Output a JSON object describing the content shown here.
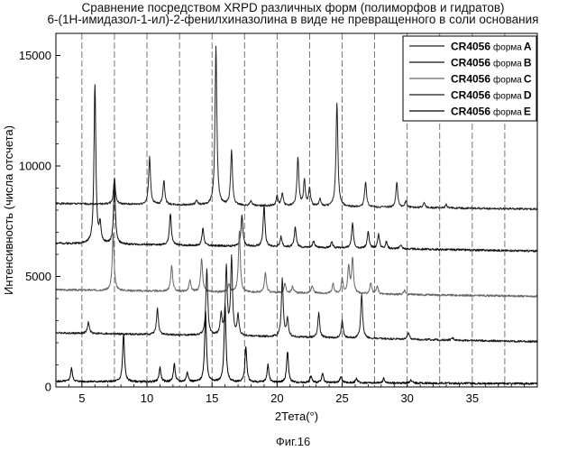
{
  "page": {
    "title_line1": "Сравнение посредством XRPD различных форм (полиморфов и гидратов)",
    "title_line2": "6-(1Н-имидазол-1-ил)-2-фенилхиназолина в виде не превращенного в соли основания",
    "figure_label": "Фиг.16"
  },
  "chart_data": {
    "type": "line",
    "xlabel": "2Тета(°)",
    "ylabel": "Интенсивность (числа отсчета)",
    "xlim": [
      3,
      40
    ],
    "ylim": [
      0,
      16000
    ],
    "xticks": [
      "5",
      "10",
      "15",
      "20",
      "25",
      "30",
      "35"
    ],
    "xtick_values": [
      5,
      10,
      15,
      20,
      25,
      30,
      35
    ],
    "yticks": [
      "0",
      "5000",
      "10000",
      "15000"
    ],
    "ytick_values": [
      0,
      5000,
      10000,
      15000
    ],
    "dashed_reference_lines_2theta": [
      5,
      7.5,
      10,
      12.5,
      15,
      17.5,
      20,
      22.5,
      25,
      27.5,
      30,
      32.5,
      35,
      37.5
    ],
    "legend_position": "top-right",
    "legend_word": "форма",
    "series": [
      {
        "name": "CR4056",
        "form": "A",
        "color": "#222222",
        "baseline_start": 8300,
        "baseline_end": 8050,
        "peaks": [
          [
            7.5,
            1200
          ],
          [
            10.2,
            2150
          ],
          [
            11.3,
            1100
          ],
          [
            13.8,
            200
          ],
          [
            15.3,
            7150
          ],
          [
            16.5,
            2450
          ],
          [
            18.0,
            200
          ],
          [
            20.0,
            450
          ],
          [
            20.4,
            550
          ],
          [
            21.6,
            2200
          ],
          [
            22.1,
            1150
          ],
          [
            22.5,
            800
          ],
          [
            23.3,
            350
          ],
          [
            24.6,
            4700
          ],
          [
            26.8,
            1150
          ],
          [
            29.2,
            1150
          ],
          [
            29.9,
            300
          ],
          [
            31.3,
            250
          ],
          [
            33.0,
            150
          ]
        ]
      },
      {
        "name": "CR4056",
        "form": "B",
        "color": "#111111",
        "baseline_start": 6500,
        "baseline_end": 6150,
        "peaks": [
          [
            6.0,
            7200
          ],
          [
            6.4,
            800
          ],
          [
            7.5,
            2700
          ],
          [
            11.8,
            1450
          ],
          [
            14.3,
            800
          ],
          [
            17.3,
            1400
          ],
          [
            19.0,
            1850
          ],
          [
            20.3,
            450
          ],
          [
            21.4,
            900
          ],
          [
            22.8,
            300
          ],
          [
            24.2,
            250
          ],
          [
            25.8,
            1100
          ],
          [
            27.0,
            750
          ],
          [
            27.8,
            650
          ],
          [
            28.4,
            300
          ],
          [
            29.5,
            200
          ]
        ]
      },
      {
        "name": "CR4056",
        "form": "C",
        "color": "#666666",
        "baseline_start": 4400,
        "baseline_end": 4100,
        "peaks": [
          [
            7.4,
            2550
          ],
          [
            11.9,
            1200
          ],
          [
            13.3,
            500
          ],
          [
            14.2,
            1500
          ],
          [
            16.3,
            350
          ],
          [
            17.1,
            2800
          ],
          [
            19.1,
            900
          ],
          [
            20.6,
            400
          ],
          [
            21.2,
            300
          ],
          [
            22.7,
            350
          ],
          [
            24.3,
            450
          ],
          [
            25.0,
            650
          ],
          [
            25.5,
            1200
          ],
          [
            25.8,
            1600
          ],
          [
            27.2,
            500
          ],
          [
            27.7,
            350
          ],
          [
            29.8,
            200
          ]
        ]
      },
      {
        "name": "CR4056",
        "form": "D",
        "color": "#1a1a1a",
        "baseline_start": 2450,
        "baseline_end": 2050,
        "peaks": [
          [
            5.5,
            500
          ],
          [
            10.8,
            1200
          ],
          [
            14.6,
            3000
          ],
          [
            15.7,
            900
          ],
          [
            16.1,
            3000
          ],
          [
            16.5,
            3500
          ],
          [
            17.0,
            900
          ],
          [
            20.4,
            2600
          ],
          [
            20.8,
            800
          ],
          [
            23.2,
            1100
          ],
          [
            25.0,
            800
          ],
          [
            26.5,
            2000
          ],
          [
            30.1,
            300
          ],
          [
            33.5,
            100
          ]
        ]
      },
      {
        "name": "CR4056",
        "form": "E",
        "color": "#000000",
        "baseline_start": 250,
        "baseline_end": 150,
        "peaks": [
          [
            4.2,
            600
          ],
          [
            8.2,
            2150
          ],
          [
            11.0,
            650
          ],
          [
            12.1,
            800
          ],
          [
            13.1,
            450
          ],
          [
            14.5,
            3200
          ],
          [
            16.0,
            3550
          ],
          [
            17.6,
            1600
          ],
          [
            19.3,
            800
          ],
          [
            20.8,
            1400
          ],
          [
            22.6,
            300
          ],
          [
            23.5,
            400
          ],
          [
            24.9,
            300
          ],
          [
            26.1,
            200
          ],
          [
            28.2,
            200
          ],
          [
            30.3,
            150
          ]
        ]
      }
    ]
  }
}
